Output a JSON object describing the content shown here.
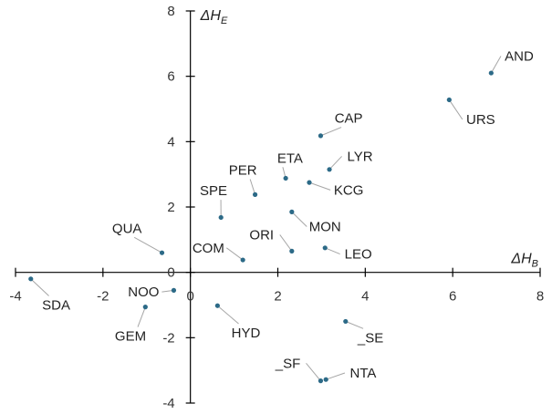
{
  "chart_data": {
    "type": "scatter",
    "xlabel": {
      "main": "ΔH",
      "sub": "B"
    },
    "ylabel": {
      "main": "ΔH",
      "sub": "E"
    },
    "xlim": [
      -4,
      8
    ],
    "ylim": [
      -4,
      8
    ],
    "x_ticks": [
      -4,
      -2,
      0,
      2,
      4,
      6,
      8
    ],
    "y_ticks": [
      -4,
      -2,
      0,
      2,
      4,
      6,
      8
    ],
    "x_tick_labels": [
      "-4",
      "-2",
      "0",
      "2",
      "4",
      "6",
      "8"
    ],
    "y_tick_labels": [
      "-4",
      "-2",
      "0",
      "2",
      "4",
      "6",
      "8"
    ],
    "marker_color": "#2c6a87",
    "leader_color": "#a6a6a6",
    "grid": false,
    "legend": "none",
    "points": [
      {
        "label": "AND",
        "x": 6.88,
        "y": 6.1,
        "lx": 7.52,
        "ly": 6.62
      },
      {
        "label": "URS",
        "x": 5.92,
        "y": 5.28,
        "lx": 6.64,
        "ly": 4.68
      },
      {
        "label": "CAP",
        "x": 2.98,
        "y": 4.18,
        "lx": 3.62,
        "ly": 4.72
      },
      {
        "label": "LYR",
        "x": 3.18,
        "y": 3.15,
        "lx": 3.88,
        "ly": 3.55
      },
      {
        "label": "ETA",
        "x": 2.18,
        "y": 2.88,
        "lx": 2.28,
        "ly": 3.5
      },
      {
        "label": "KCG",
        "x": 2.72,
        "y": 2.75,
        "lx": 3.62,
        "ly": 2.52
      },
      {
        "label": "PER",
        "x": 1.48,
        "y": 2.38,
        "lx": 1.2,
        "ly": 3.13
      },
      {
        "label": "SPE",
        "x": 0.7,
        "y": 1.68,
        "lx": 0.53,
        "ly": 2.5
      },
      {
        "label": "MON",
        "x": 2.32,
        "y": 1.85,
        "lx": 3.08,
        "ly": 1.4
      },
      {
        "label": "QUA",
        "x": -0.65,
        "y": 0.6,
        "lx": -1.45,
        "ly": 1.35
      },
      {
        "label": "ORI",
        "x": 2.32,
        "y": 0.65,
        "lx": 1.63,
        "ly": 1.15
      },
      {
        "label": "COM",
        "x": 1.2,
        "y": 0.38,
        "lx": 0.41,
        "ly": 0.75
      },
      {
        "label": "LEO",
        "x": 3.08,
        "y": 0.75,
        "lx": 3.84,
        "ly": 0.56
      },
      {
        "label": "SDA",
        "x": -3.65,
        "y": -0.2,
        "lx": -3.07,
        "ly": -1.0
      },
      {
        "label": "NOO",
        "x": -0.38,
        "y": -0.55,
        "lx": -1.07,
        "ly": -0.6
      },
      {
        "label": "GEM",
        "x": -1.03,
        "y": -1.06,
        "lx": -1.37,
        "ly": -1.95
      },
      {
        "label": "HYD",
        "x": 0.62,
        "y": -1.02,
        "lx": 1.27,
        "ly": -1.85
      },
      {
        "label": "_SE",
        "x": 3.55,
        "y": -1.5,
        "lx": 4.12,
        "ly": -2.0
      },
      {
        "label": "_SF",
        "x": 2.98,
        "y": -3.32,
        "lx": 2.23,
        "ly": -2.78
      },
      {
        "label": "NTA",
        "x": 3.1,
        "y": -3.28,
        "lx": 3.95,
        "ly": -3.08
      }
    ]
  }
}
